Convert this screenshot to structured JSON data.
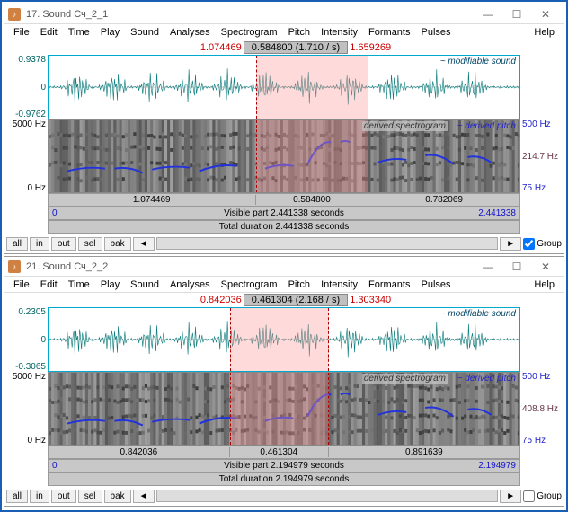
{
  "menus": [
    "File",
    "Edit",
    "Time",
    "Play",
    "Sound",
    "Analyses",
    "Spectrogram",
    "Pitch",
    "Intensity",
    "Formants",
    "Pulses"
  ],
  "help_label": "Help",
  "modifiable_sound_label": "~ modifiable sound",
  "derived_spectrogram_label": "derived spectrogram",
  "derived_pitch_label": "~ derived pitch",
  "visible_part_prefix": "Visible part",
  "total_duration_prefix": "Total duration",
  "seconds_suffix": "seconds",
  "buttons": {
    "all": "all",
    "in": "in",
    "out": "out",
    "sel": "sel",
    "bak": "bak"
  },
  "group_label": "Group",
  "windows": [
    {
      "title": "17. Sound Сч_2_1",
      "pos_left": "1.074469",
      "pos_mid": "0.584800 (1.710 / s)",
      "pos_right": "1.659269",
      "wave_ymax": "0.9378",
      "wave_zero": "0",
      "wave_ymin": "-0.9762",
      "spec_ymax": "5000 Hz",
      "spec_ymin": "0 Hz",
      "pitch_ymax": "500 Hz",
      "pitch_mid": "214.7 Hz",
      "pitch_ymin": "75 Hz",
      "seg1": "1.074469",
      "seg2": "0.584800",
      "seg3": "0.782069",
      "visible_part": "2.441338",
      "total_duration": "2.441338",
      "info_left": "0",
      "info_right": "2.441338",
      "group_checked": true,
      "sel_left_pct": 44.0,
      "sel_width_pct": 24.0,
      "wave_color": "#0a7a7a",
      "pitch_color": "#2233dd"
    },
    {
      "title": "21. Sound Сч_2_2",
      "pos_left": "0.842036",
      "pos_mid": "0.461304 (2.168 / s)",
      "pos_right": "1.303340",
      "wave_ymax": "0.2305",
      "wave_zero": "0",
      "wave_ymin": "-0.3065",
      "spec_ymax": "5000 Hz",
      "spec_ymin": "0 Hz",
      "pitch_ymax": "500 Hz",
      "pitch_mid": "408.8 Hz",
      "pitch_ymin": "75 Hz",
      "seg1": "0.842036",
      "seg2": "0.461304",
      "seg3": "0.891639",
      "visible_part": "2.194979",
      "total_duration": "2.194979",
      "info_left": "0",
      "info_right": "2.194979",
      "group_checked": false,
      "sel_left_pct": 38.5,
      "sel_width_pct": 21.0,
      "wave_color": "#0a7a7a",
      "pitch_color": "#2233dd"
    }
  ]
}
